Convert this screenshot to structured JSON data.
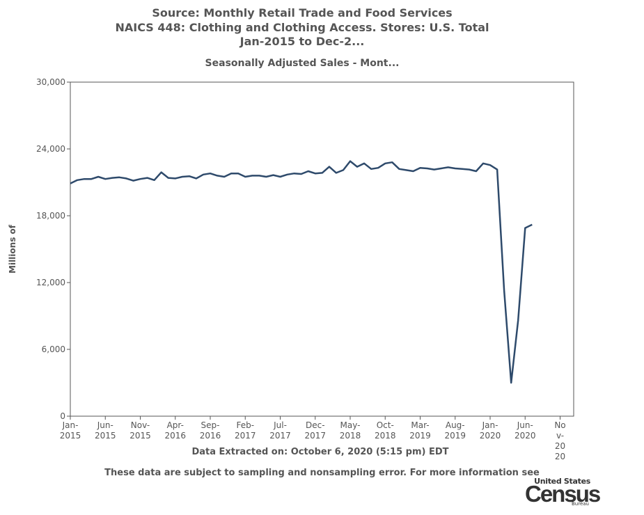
{
  "header": {
    "title_line1": "Source: Monthly Retail Trade and Food Services",
    "title_line2": "NAICS 448: Clothing and Clothing Access. Stores: U.S. Total",
    "title_line3": "Jan-2015 to Dec-2...",
    "subtitle": "Seasonally Adjusted Sales - Mont..."
  },
  "footer": {
    "extracted": "Data Extracted on: October 6, 2020 (5:15 pm) EDT",
    "sampling": "These data are subject to sampling and nonsampling error. For more information see"
  },
  "logo": {
    "top": "United States",
    "main": "Census",
    "bottom": "Bureau"
  },
  "colors": {
    "line": "#2e4a6b",
    "text": "#555555",
    "axis": "#555555"
  },
  "chart_data": {
    "type": "line",
    "title": "Source: Monthly Retail Trade and Food Services",
    "ylabel": "Millions of",
    "xlabel": "",
    "ylim": [
      0,
      30000
    ],
    "yticks": [
      0,
      6000,
      12000,
      18000,
      24000,
      30000
    ],
    "ytick_labels": [
      "0",
      "6,000",
      "12,000",
      "18,000",
      "24,000",
      "30,000"
    ],
    "xlim": [
      "Jan-2015",
      "Dec-2020"
    ],
    "xticks": [
      {
        "month_index": 0,
        "line1": "Jan-",
        "line2": "2015"
      },
      {
        "month_index": 5,
        "line1": "Jun-",
        "line2": "2015"
      },
      {
        "month_index": 10,
        "line1": "Nov-",
        "line2": "2015"
      },
      {
        "month_index": 15,
        "line1": "Apr-",
        "line2": "2016"
      },
      {
        "month_index": 20,
        "line1": "Sep-",
        "line2": "2016"
      },
      {
        "month_index": 25,
        "line1": "Feb-",
        "line2": "2017"
      },
      {
        "month_index": 30,
        "line1": "Jul-",
        "line2": "2017"
      },
      {
        "month_index": 35,
        "line1": "Dec-",
        "line2": "2017"
      },
      {
        "month_index": 40,
        "line1": "May-",
        "line2": "2018"
      },
      {
        "month_index": 45,
        "line1": "Oct-",
        "line2": "2018"
      },
      {
        "month_index": 50,
        "line1": "Mar-",
        "line2": "2019"
      },
      {
        "month_index": 55,
        "line1": "Aug-",
        "line2": "2019"
      },
      {
        "month_index": 60,
        "line1": "Jan-",
        "line2": "2020"
      },
      {
        "month_index": 65,
        "line1": "Jun-",
        "line2": "2020"
      },
      {
        "month_index": 70,
        "line1": "Nov-",
        "line2": "v-",
        "line3": "20",
        "line4": "20",
        "vertical": true
      }
    ],
    "grid": false,
    "series": [
      {
        "values": [
          20900,
          21200,
          21300,
          21300,
          21500,
          21300,
          21400,
          21450,
          21350,
          21150,
          21300,
          21400,
          21200,
          21900,
          21400,
          21350,
          21500,
          21550,
          21350,
          21700,
          21800,
          21600,
          21500,
          21800,
          21800,
          21500,
          21600,
          21600,
          21500,
          21650,
          21500,
          21700,
          21800,
          21750,
          22000,
          21800,
          21850,
          22400,
          21850,
          22100,
          22900,
          22400,
          22700,
          22200,
          22300,
          22700,
          22800,
          22200,
          22100,
          22000,
          22300,
          22250,
          22150,
          22250,
          22350,
          22250,
          22200,
          22150,
          22000,
          22700,
          22550,
          22150,
          11300,
          3000,
          8600,
          16900,
          17200
        ]
      }
    ]
  }
}
